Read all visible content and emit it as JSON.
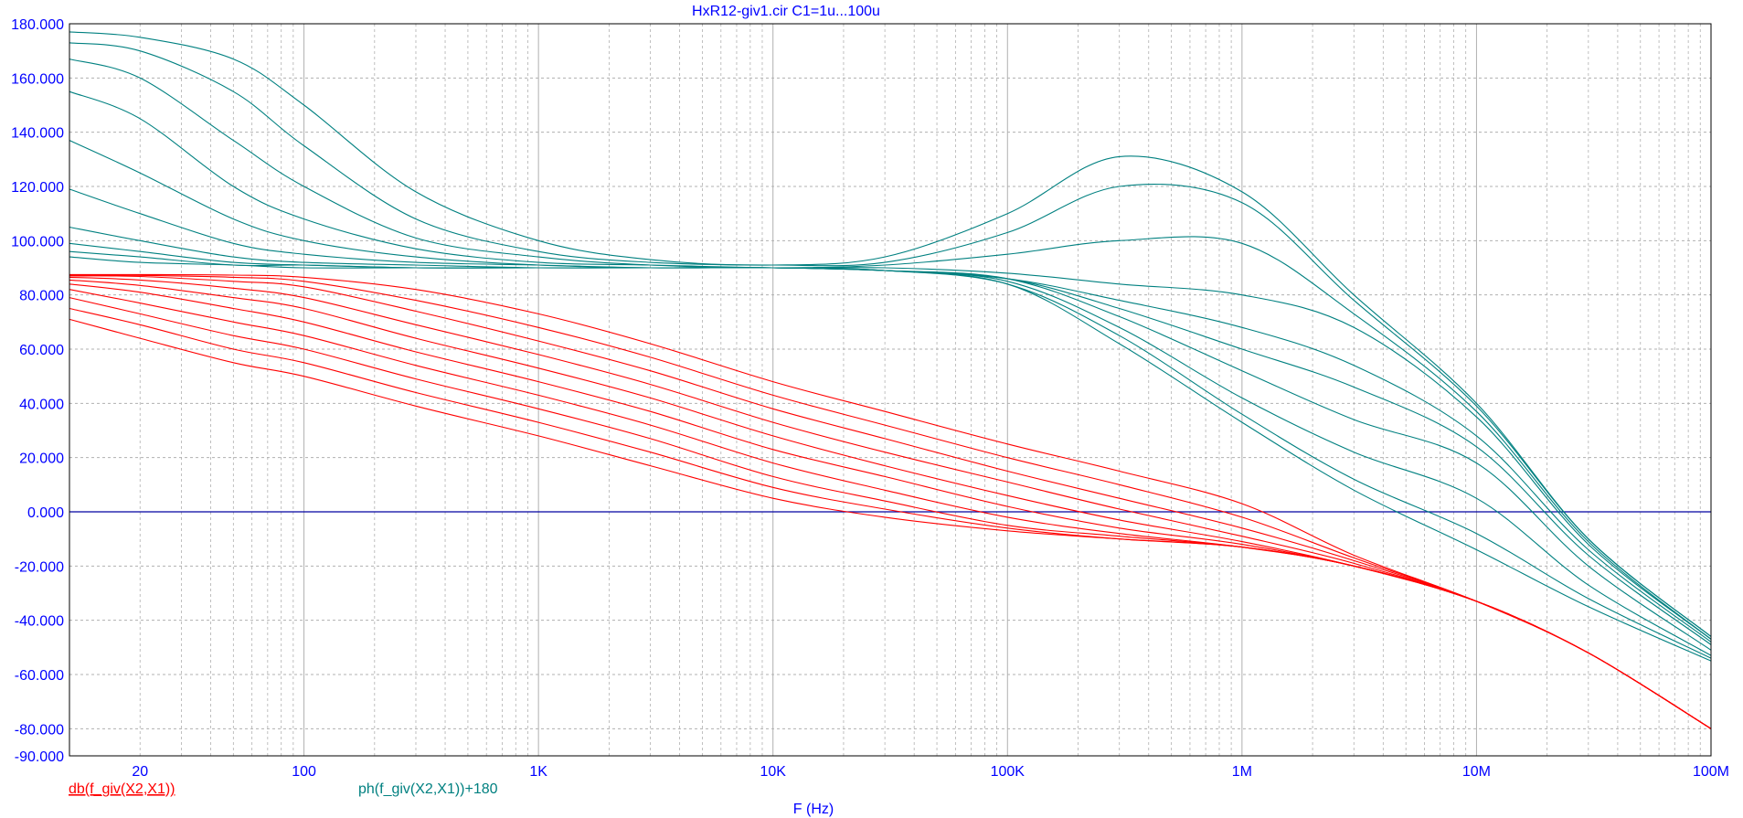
{
  "chart_data": {
    "type": "line",
    "title": "HxR12-giv1.cir C1=1u...100u",
    "xlabel": "F (Hz)",
    "x_scale": "log",
    "xlim": [
      10,
      100000000
    ],
    "ylim": [
      -90,
      180
    ],
    "y_ticks": [
      180,
      160,
      140,
      120,
      100,
      80,
      60,
      40,
      20,
      0,
      -20,
      -40,
      -60,
      -80,
      -90
    ],
    "y_tick_labels": [
      "180.000",
      "160.000",
      "140.000",
      "120.000",
      "100.000",
      "80.000",
      "60.000",
      "40.000",
      "20.000",
      "0.000",
      "-20.000",
      "-40.000",
      "-60.000",
      "-80.000",
      "-90.000"
    ],
    "x_ticks": [
      20,
      100,
      1000,
      10000,
      100000,
      1000000,
      10000000,
      100000000
    ],
    "x_tick_labels": [
      "20",
      "100",
      "1K",
      "10K",
      "100K",
      "1M",
      "10M",
      "100M"
    ],
    "grid": true,
    "legend": [
      {
        "label": "db(f_giv(X2,X1))",
        "color": "#ff0000"
      },
      {
        "label": "ph(f_giv(X2,X1))+180",
        "color": "#008080"
      }
    ],
    "colors": {
      "magnitude": "#ff0000",
      "phase": "#008080",
      "zero_line": "#0000a0",
      "grid": "#b0b0b0",
      "text": "#0000ff"
    },
    "series": [
      {
        "group": "db(f_giv(X2,X1))",
        "x": [
          10,
          20,
          50,
          100,
          300,
          1000,
          3000,
          10000,
          30000,
          100000,
          300000,
          1000000,
          3000000,
          10000000,
          30000000,
          100000000
        ],
        "y": [
          87.5,
          87.5,
          87.3,
          86.5,
          82,
          73,
          62,
          48,
          37,
          25,
          15,
          3,
          -16,
          -33,
          -52,
          -80
        ]
      },
      {
        "group": "db(f_giv(X2,X1))",
        "x": [
          10,
          20,
          50,
          100,
          300,
          1000,
          3000,
          10000,
          30000,
          100000,
          300000,
          1000000,
          3000000,
          10000000,
          30000000,
          100000000
        ],
        "y": [
          87.3,
          87.2,
          86.5,
          85,
          78,
          68,
          57,
          43,
          32,
          20,
          10,
          -2,
          -17,
          -33,
          -52,
          -80
        ]
      },
      {
        "group": "db(f_giv(X2,X1))",
        "x": [
          10,
          20,
          50,
          100,
          300,
          1000,
          3000,
          10000,
          30000,
          100000,
          300000,
          1000000,
          3000000,
          10000000,
          30000000,
          100000000
        ],
        "y": [
          87,
          86.8,
          85,
          83,
          74,
          63,
          52,
          38,
          27,
          15,
          5,
          -6,
          -18,
          -33,
          -52,
          -80
        ]
      },
      {
        "group": "db(f_giv(X2,X1))",
        "x": [
          10,
          20,
          50,
          100,
          300,
          1000,
          3000,
          10000,
          30000,
          100000,
          300000,
          1000000,
          3000000,
          10000000,
          30000000,
          100000000
        ],
        "y": [
          86.5,
          85.5,
          82.5,
          79,
          69,
          58,
          47,
          33,
          22,
          11,
          1,
          -9,
          -19,
          -33,
          -52,
          -80
        ]
      },
      {
        "group": "db(f_giv(X2,X1))",
        "x": [
          10,
          20,
          50,
          100,
          300,
          1000,
          3000,
          10000,
          30000,
          100000,
          300000,
          1000000,
          3000000,
          10000000,
          30000000,
          100000000
        ],
        "y": [
          85.5,
          83.5,
          79,
          75,
          64,
          53,
          42,
          28,
          17,
          6,
          -3,
          -11,
          -20,
          -33,
          -52,
          -80
        ]
      },
      {
        "group": "db(f_giv(X2,X1))",
        "x": [
          10,
          20,
          50,
          100,
          300,
          1000,
          3000,
          10000,
          30000,
          100000,
          300000,
          1000000,
          3000000,
          10000000,
          30000000,
          100000000
        ],
        "y": [
          84,
          81,
          75,
          70,
          59,
          48,
          37,
          23,
          13,
          2,
          -6,
          -12,
          -20,
          -33,
          -52,
          -80
        ]
      },
      {
        "group": "db(f_giv(X2,X1))",
        "x": [
          10,
          20,
          50,
          100,
          300,
          1000,
          3000,
          10000,
          30000,
          100000,
          300000,
          1000000,
          3000000,
          10000000,
          30000000,
          100000000
        ],
        "y": [
          82,
          77,
          70,
          65,
          54,
          43,
          32,
          18,
          8,
          -2,
          -8,
          -13,
          -20,
          -33,
          -52,
          -80
        ]
      },
      {
        "group": "db(f_giv(X2,X1))",
        "x": [
          10,
          20,
          50,
          100,
          300,
          1000,
          3000,
          10000,
          30000,
          100000,
          300000,
          1000000,
          3000000,
          10000000,
          30000000,
          100000000
        ],
        "y": [
          79,
          73,
          65,
          60,
          49,
          38,
          27,
          13,
          4,
          -5,
          -9,
          -13,
          -20,
          -33,
          -52,
          -80
        ]
      },
      {
        "group": "db(f_giv(X2,X1))",
        "x": [
          10,
          20,
          50,
          100,
          300,
          1000,
          3000,
          10000,
          30000,
          100000,
          300000,
          1000000,
          3000000,
          10000000,
          30000000,
          100000000
        ],
        "y": [
          75,
          69,
          60,
          55,
          44,
          33,
          22,
          9,
          1,
          -6,
          -10,
          -13,
          -20,
          -33,
          -52,
          -80
        ]
      },
      {
        "group": "db(f_giv(X2,X1))",
        "x": [
          10,
          20,
          50,
          100,
          300,
          1000,
          3000,
          10000,
          30000,
          100000,
          300000,
          1000000,
          3000000,
          10000000,
          30000000,
          100000000
        ],
        "y": [
          71,
          64,
          55,
          50,
          39,
          28,
          17,
          5,
          -2,
          -7,
          -10,
          -13,
          -20,
          -33,
          -52,
          -80
        ]
      },
      {
        "group": "ph(f_giv(X2,X1))+180",
        "x": [
          10,
          20,
          50,
          100,
          300,
          1000,
          3000,
          10000,
          30000,
          100000,
          300000,
          1000000,
          3000000,
          10000000,
          30000000,
          100000000
        ],
        "y": [
          177,
          175,
          167,
          150,
          118,
          100,
          93,
          91,
          94,
          110,
          131,
          118,
          80,
          40,
          -10,
          -46
        ]
      },
      {
        "group": "ph(f_giv(X2,X1))+180",
        "x": [
          10,
          20,
          50,
          100,
          300,
          1000,
          3000,
          10000,
          30000,
          100000,
          300000,
          1000000,
          3000000,
          10000000,
          30000000,
          100000000
        ],
        "y": [
          173,
          170,
          155,
          135,
          108,
          96,
          92,
          91,
          92,
          103,
          120,
          114,
          78,
          39,
          -10,
          -46
        ]
      },
      {
        "group": "ph(f_giv(X2,X1))+180",
        "x": [
          10,
          20,
          50,
          100,
          300,
          1000,
          3000,
          10000,
          30000,
          100000,
          300000,
          1000000,
          3000000,
          10000000,
          30000000,
          100000000
        ],
        "y": [
          167,
          160,
          137,
          120,
          101,
          94,
          91,
          90,
          91,
          95,
          100,
          99,
          73,
          37,
          -11,
          -47
        ]
      },
      {
        "group": "ph(f_giv(X2,X1))+180",
        "x": [
          10,
          20,
          50,
          100,
          300,
          1000,
          3000,
          10000,
          30000,
          100000,
          300000,
          1000000,
          3000000,
          10000000,
          30000000,
          100000000
        ],
        "y": [
          155,
          145,
          120,
          108,
          97,
          92,
          91,
          90,
          90,
          88,
          84,
          80,
          68,
          35,
          -12,
          -47
        ]
      },
      {
        "group": "ph(f_giv(X2,X1))+180",
        "x": [
          10,
          20,
          50,
          100,
          300,
          1000,
          3000,
          10000,
          30000,
          100000,
          300000,
          1000000,
          3000000,
          10000000,
          30000000,
          100000000
        ],
        "y": [
          137,
          125,
          108,
          100,
          94,
          91,
          90,
          90,
          89,
          86,
          78,
          68,
          54,
          28,
          -14,
          -48
        ]
      },
      {
        "group": "ph(f_giv(X2,X1))+180",
        "x": [
          10,
          20,
          50,
          100,
          300,
          1000,
          3000,
          10000,
          30000,
          100000,
          300000,
          1000000,
          3000000,
          10000000,
          30000000,
          100000000
        ],
        "y": [
          119,
          110,
          99,
          95,
          92,
          91,
          90,
          90,
          89,
          86,
          75,
          60,
          46,
          24,
          -16,
          -49
        ]
      },
      {
        "group": "ph(f_giv(X2,X1))+180",
        "x": [
          10,
          20,
          50,
          100,
          300,
          1000,
          3000,
          10000,
          30000,
          100000,
          300000,
          1000000,
          3000000,
          10000000,
          30000000,
          100000000
        ],
        "y": [
          105,
          100,
          94,
          92,
          91,
          90,
          90,
          90,
          89,
          86,
          72,
          52,
          34,
          18,
          -20,
          -51
        ]
      },
      {
        "group": "ph(f_giv(X2,X1))+180",
        "x": [
          10,
          20,
          50,
          100,
          300,
          1000,
          3000,
          10000,
          30000,
          100000,
          300000,
          1000000,
          3000000,
          10000000,
          30000000,
          100000000
        ],
        "y": [
          99,
          96,
          92,
          91,
          90,
          90,
          90,
          90,
          89,
          85,
          68,
          42,
          22,
          5,
          -27,
          -53
        ]
      },
      {
        "group": "ph(f_giv(X2,X1))+180",
        "x": [
          10,
          20,
          50,
          100,
          300,
          1000,
          3000,
          10000,
          30000,
          100000,
          300000,
          1000000,
          3000000,
          10000000,
          30000000,
          100000000
        ],
        "y": [
          96,
          94,
          91,
          91,
          90,
          90,
          90,
          90,
          89,
          84,
          65,
          36,
          12,
          -8,
          -32,
          -54
        ]
      },
      {
        "group": "ph(f_giv(X2,X1))+180",
        "x": [
          10,
          20,
          50,
          100,
          300,
          1000,
          3000,
          10000,
          30000,
          100000,
          300000,
          1000000,
          3000000,
          10000000,
          30000000,
          100000000
        ],
        "y": [
          94,
          92,
          91,
          90,
          90,
          90,
          90,
          90,
          89,
          84,
          62,
          33,
          8,
          -14,
          -35,
          -55
        ]
      }
    ],
    "reference_line": {
      "y": 0,
      "color": "#0000a0"
    }
  }
}
